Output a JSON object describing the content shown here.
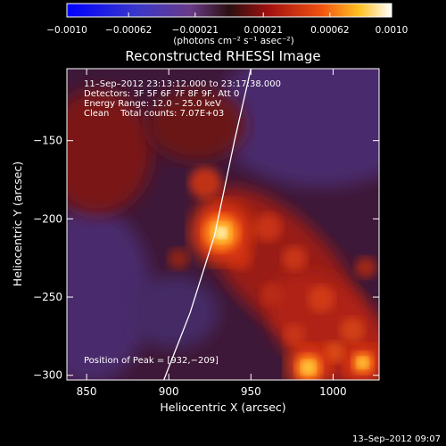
{
  "chart_data": {
    "type": "heatmap",
    "title": "Reconstructed RHESSI Image",
    "xlabel": "Heliocentric X (arcsec)",
    "ylabel": "Heliocentric Y (arcsec)",
    "xlim": [
      838,
      1028
    ],
    "ylim": [
      -303,
      -104
    ],
    "x_ticks": [
      850,
      900,
      950,
      1000
    ],
    "y_ticks": [
      -150,
      -200,
      -250,
      -300
    ],
    "x_tick_labels": [
      "850",
      "900",
      "950",
      "1000"
    ],
    "y_tick_labels": [
      "−150",
      "−200",
      "−250",
      "−300"
    ],
    "colorbar": {
      "min": -0.001,
      "max": 0.001,
      "ticks": [
        -0.001,
        -0.00062,
        -0.00021,
        0.00021,
        0.00062,
        0.001
      ],
      "tick_labels": [
        "−0.0010",
        "−0.00062",
        "−0.00021",
        "0.00021",
        "0.00062",
        "0.0010"
      ],
      "units": "(photons cm⁻² s⁻¹ asec⁻²)"
    },
    "annotations": [
      "11–Sep–2012 23:13:12.000 to 23:17:38.000",
      "Detectors: 3F 5F 6F 7F 8F 9F, Att 0",
      "Energy Range: 12.0 – 25.0 keV",
      "Clean    Total counts: 7.07E+03"
    ],
    "peak_label": "Position of Peak = [932,−209]",
    "peak": [
      932,
      -209
    ],
    "sources": [
      {
        "x": 932,
        "y": -209,
        "flux": 0.001
      },
      {
        "x": 985,
        "y": -295,
        "flux": 0.00072
      },
      {
        "x": 1018,
        "y": -292,
        "flux": 0.00058
      }
    ],
    "limb_curve": [
      [
        950,
        -104
      ],
      [
        940,
        -150
      ],
      [
        928,
        -210
      ],
      [
        913,
        -260
      ],
      [
        897,
        -303
      ]
    ]
  },
  "footer_timestamp": "13–Sep–2012 09:07"
}
